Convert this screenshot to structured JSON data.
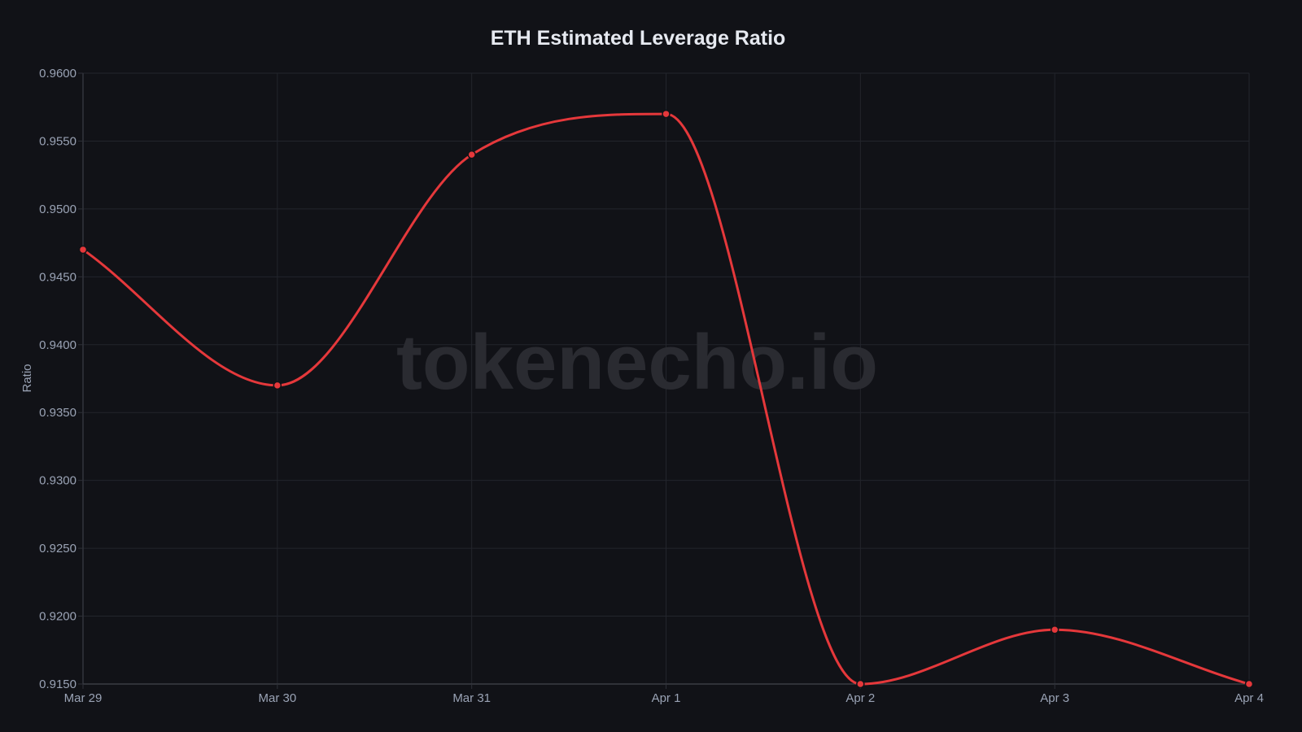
{
  "chart_data": {
    "type": "line",
    "title": "ETH Estimated Leverage Ratio",
    "xlabel": "",
    "ylabel": "Ratio",
    "categories": [
      "Mar 29",
      "Mar 30",
      "Mar 31",
      "Apr 1",
      "Apr 2",
      "Apr 3",
      "Apr 4"
    ],
    "series": [
      {
        "name": "ETH Estimated Leverage Ratio",
        "color": "#e5383b",
        "values": [
          0.947,
          0.937,
          0.954,
          0.957,
          0.915,
          0.919,
          0.915
        ]
      }
    ],
    "ylim": [
      0.915,
      0.96
    ],
    "yticks": [
      "0.9600",
      "0.9550",
      "0.9500",
      "0.9450",
      "0.9400",
      "0.9350",
      "0.9300",
      "0.9250",
      "0.9200",
      "0.9150"
    ],
    "grid": true,
    "legend": "none",
    "smooth": true
  },
  "watermark": "tokenecho.io"
}
